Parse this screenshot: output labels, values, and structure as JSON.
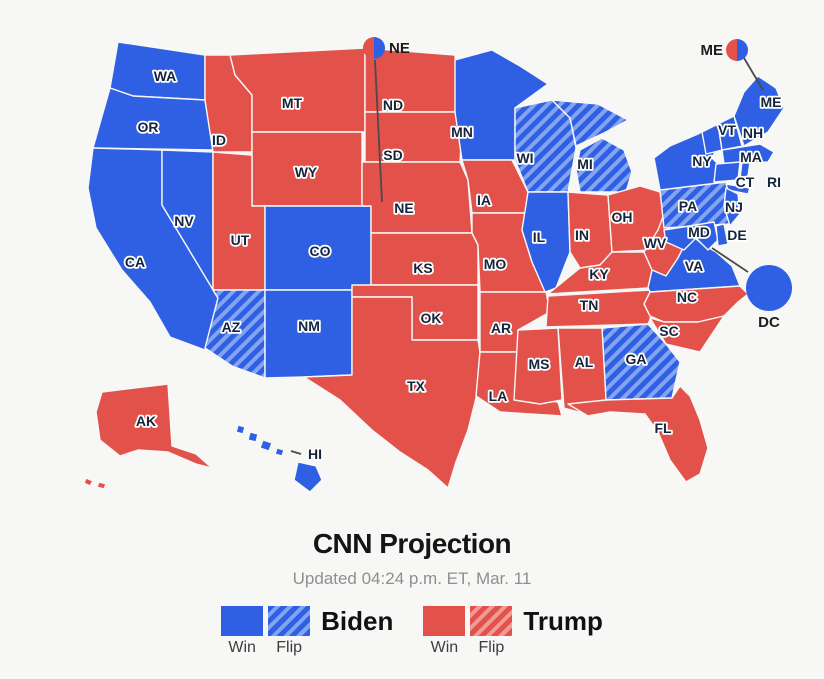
{
  "header": {
    "title": "CNN Projection",
    "subtitle": "Updated 04:24 p.m. ET, Mar. 11"
  },
  "legend": {
    "biden": {
      "name": "Biden",
      "win_label": "Win",
      "flip_label": "Flip"
    },
    "trump": {
      "name": "Trump",
      "win_label": "Win",
      "flip_label": "Flip"
    }
  },
  "colors": {
    "background": "#f7f7f6",
    "biden_win": "#2f5fe3",
    "biden_flip_stripe": "#84a4f0",
    "trump_win": "#e2524a",
    "trump_flip_stripe": "#f09b95",
    "state_border": "#f7f7f6",
    "label_text": "#14243c",
    "connector_line": "#4a4a4a"
  },
  "map": {
    "states": [
      {
        "code": "WA",
        "result": "biden-win"
      },
      {
        "code": "OR",
        "result": "biden-win"
      },
      {
        "code": "CA",
        "result": "biden-win"
      },
      {
        "code": "NV",
        "result": "biden-win"
      },
      {
        "code": "ID",
        "result": "trump-win"
      },
      {
        "code": "MT",
        "result": "trump-win"
      },
      {
        "code": "WY",
        "result": "trump-win"
      },
      {
        "code": "UT",
        "result": "trump-win"
      },
      {
        "code": "CO",
        "result": "biden-win"
      },
      {
        "code": "AZ",
        "result": "biden-flip"
      },
      {
        "code": "NM",
        "result": "biden-win"
      },
      {
        "code": "AK",
        "result": "trump-win"
      },
      {
        "code": "HI",
        "result": "biden-win"
      },
      {
        "code": "ND",
        "result": "trump-win"
      },
      {
        "code": "SD",
        "result": "trump-win"
      },
      {
        "code": "NE",
        "result": "trump-win"
      },
      {
        "code": "KS",
        "result": "trump-win"
      },
      {
        "code": "OK",
        "result": "trump-win"
      },
      {
        "code": "TX",
        "result": "trump-win"
      },
      {
        "code": "MN",
        "result": "biden-win"
      },
      {
        "code": "IA",
        "result": "trump-win"
      },
      {
        "code": "MO",
        "result": "trump-win"
      },
      {
        "code": "AR",
        "result": "trump-win"
      },
      {
        "code": "LA",
        "result": "trump-win"
      },
      {
        "code": "WI",
        "result": "biden-flip"
      },
      {
        "code": "MI",
        "result": "biden-flip"
      },
      {
        "code": "IL",
        "result": "biden-win"
      },
      {
        "code": "IN",
        "result": "trump-win"
      },
      {
        "code": "OH",
        "result": "trump-win"
      },
      {
        "code": "KY",
        "result": "trump-win"
      },
      {
        "code": "TN",
        "result": "trump-win"
      },
      {
        "code": "WV",
        "result": "trump-win"
      },
      {
        "code": "VA",
        "result": "biden-win"
      },
      {
        "code": "NC",
        "result": "trump-win"
      },
      {
        "code": "SC",
        "result": "trump-win"
      },
      {
        "code": "GA",
        "result": "biden-flip"
      },
      {
        "code": "AL",
        "result": "trump-win"
      },
      {
        "code": "MS",
        "result": "trump-win"
      },
      {
        "code": "FL",
        "result": "trump-win"
      },
      {
        "code": "PA",
        "result": "biden-flip"
      },
      {
        "code": "NY",
        "result": "biden-win"
      },
      {
        "code": "VT",
        "result": "biden-win"
      },
      {
        "code": "NH",
        "result": "biden-win"
      },
      {
        "code": "MA",
        "result": "biden-win"
      },
      {
        "code": "CT",
        "result": "biden-win"
      },
      {
        "code": "RI",
        "result": "biden-win"
      },
      {
        "code": "NJ",
        "result": "biden-win"
      },
      {
        "code": "MD",
        "result": "biden-win"
      },
      {
        "code": "DE",
        "result": "biden-win"
      },
      {
        "code": "ME",
        "result": "biden-win"
      },
      {
        "code": "DC",
        "result": "biden-win"
      }
    ],
    "markers": {
      "ne": {
        "label": "NE",
        "left_color_result": "trump-win",
        "right_color_result": "biden-win"
      },
      "me": {
        "label": "ME",
        "left_color_result": "trump-win",
        "right_color_result": "biden-win"
      },
      "dc": {
        "label": "DC",
        "result": "biden-win"
      }
    }
  }
}
